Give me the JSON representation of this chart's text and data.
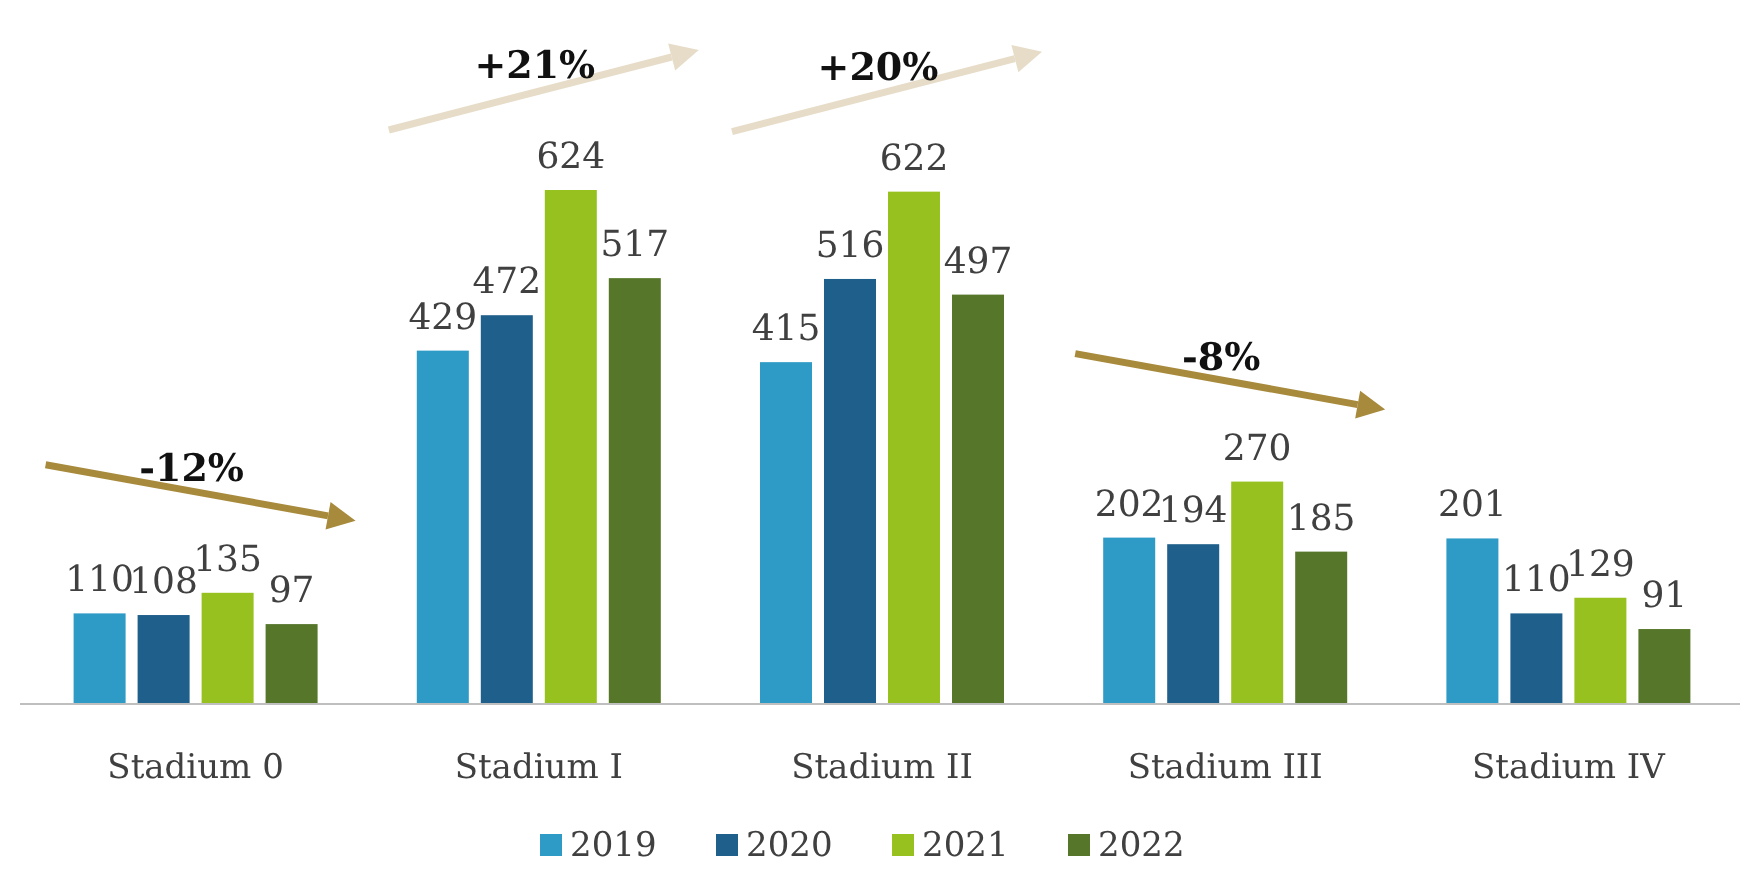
{
  "chart_data": {
    "type": "bar",
    "categories": [
      "Stadium 0",
      "Stadium I",
      "Stadium II",
      "Stadium III",
      "Stadium IV"
    ],
    "series": [
      {
        "name": "2019",
        "color": "#2e9ac6",
        "values": [
          110,
          429,
          415,
          202,
          201
        ]
      },
      {
        "name": "2020",
        "color": "#1f5f8b",
        "values": [
          108,
          472,
          516,
          194,
          110
        ]
      },
      {
        "name": "2021",
        "color": "#96c11f",
        "values": [
          135,
          624,
          622,
          270,
          129
        ]
      },
      {
        "name": "2022",
        "color": "#56772a",
        "values": [
          97,
          517,
          497,
          185,
          91
        ]
      }
    ],
    "data_labels": true,
    "legend": "bottom",
    "annotations": [
      "-12%",
      "+21%",
      "+20%",
      "-8%"
    ]
  }
}
